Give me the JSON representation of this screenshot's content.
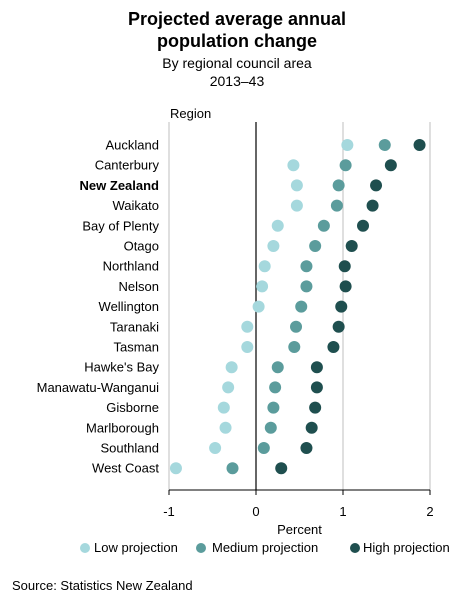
{
  "title_line1": "Projected average annual",
  "title_line2": "population change",
  "subtitle1": "By regional council area",
  "subtitle2": "2013–43",
  "source": "Source: Statistics New Zealand",
  "colors": {
    "low": "#a5d8dd",
    "medium": "#5b9c9c",
    "high": "#1f4f4f",
    "grid": "#bfbfbf"
  },
  "chart_data": {
    "type": "scatter",
    "orientation": "horizontal-dot-plot",
    "ylabel": "Region",
    "xlabel": "Percent",
    "xlim": [
      -1,
      2
    ],
    "xticks": [
      -1,
      0,
      1,
      2
    ],
    "xticklabels": [
      "-1",
      "0",
      "1",
      "2"
    ],
    "bold_category": "New Zealand",
    "categories": [
      "Auckland",
      "Canterbury",
      "New Zealand",
      "Waikato",
      "Bay of Plenty",
      "Otago",
      "Northland",
      "Nelson",
      "Wellington",
      "Taranaki",
      "Tasman",
      "Hawke's Bay",
      "Manawatu-Wanganui",
      "Gisborne",
      "Marlborough",
      "Southland",
      "West Coast"
    ],
    "series": [
      {
        "name": "Low projection",
        "key": "low",
        "values": [
          1.05,
          0.43,
          0.47,
          0.47,
          0.25,
          0.2,
          0.1,
          0.07,
          0.03,
          -0.1,
          -0.1,
          -0.28,
          -0.32,
          -0.37,
          -0.35,
          -0.47,
          -0.92
        ]
      },
      {
        "name": "Medium projection",
        "key": "medium",
        "values": [
          1.48,
          1.03,
          0.95,
          0.93,
          0.78,
          0.68,
          0.58,
          0.58,
          0.52,
          0.46,
          0.44,
          0.25,
          0.22,
          0.2,
          0.17,
          0.09,
          -0.27
        ]
      },
      {
        "name": "High projection",
        "key": "high",
        "values": [
          1.88,
          1.55,
          1.38,
          1.34,
          1.23,
          1.1,
          1.02,
          1.03,
          0.98,
          0.95,
          0.89,
          0.7,
          0.7,
          0.68,
          0.64,
          0.58,
          0.29
        ]
      }
    ],
    "legend_position": "bottom"
  }
}
